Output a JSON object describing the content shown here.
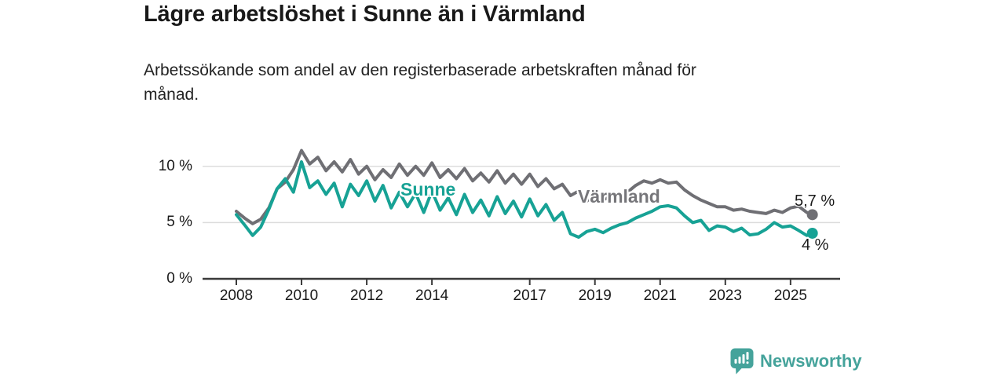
{
  "header": {
    "title": "Lägre arbetslöshet i Sunne än i Värmland",
    "subtitle_line1": "Arbetssökande som andel av den registerbaserade arbetskraften månad för",
    "subtitle_line2": "månad."
  },
  "footer": {
    "brand": "Newsworthy",
    "brand_color": "#45a39b",
    "logo_icon": "speech-bubble-bar-chart-icon"
  },
  "chart_data": {
    "type": "line",
    "title": "Lägre arbetslöshet i Sunne än i Värmland",
    "subtitle": "Arbetssökande som andel av den registerbaserade arbetskraften månad för månad.",
    "unit": "percent",
    "xlabel": "",
    "ylabel": "",
    "ylim": [
      0,
      12
    ],
    "xlim": [
      2008,
      2025.8
    ],
    "grid": "horizontal",
    "legend": "inline-labels",
    "colors": {
      "sunne": "#17a295",
      "varmland": "#6f6f74",
      "grid": "#dcdcdc",
      "axis": "#3a3a3a",
      "text": "#191919"
    },
    "y_ticks": [
      {
        "value": 0,
        "label": "0 %"
      },
      {
        "value": 5,
        "label": "5 %"
      },
      {
        "value": 10,
        "label": "10 %"
      }
    ],
    "x_ticks": [
      {
        "value": 2008,
        "label": "2008"
      },
      {
        "value": 2010,
        "label": "2010"
      },
      {
        "value": 2012,
        "label": "2012"
      },
      {
        "value": 2014,
        "label": "2014"
      },
      {
        "value": 2017,
        "label": "2017"
      },
      {
        "value": 2019,
        "label": "2019"
      },
      {
        "value": 2021,
        "label": "2021"
      },
      {
        "value": 2023,
        "label": "2023"
      },
      {
        "value": 2025,
        "label": "2025"
      }
    ],
    "x": [
      2008,
      2008.25,
      2008.5,
      2008.75,
      2009,
      2009.25,
      2009.5,
      2009.75,
      2010,
      2010.25,
      2010.5,
      2010.75,
      2011,
      2011.25,
      2011.5,
      2011.75,
      2012,
      2012.25,
      2012.5,
      2012.75,
      2013,
      2013.25,
      2013.5,
      2013.75,
      2014,
      2014.25,
      2014.5,
      2014.75,
      2015,
      2015.25,
      2015.5,
      2015.75,
      2016,
      2016.25,
      2016.5,
      2016.75,
      2017,
      2017.25,
      2017.5,
      2017.75,
      2018,
      2018.25,
      2018.5,
      2018.75,
      2019,
      2019.25,
      2019.5,
      2019.75,
      2020,
      2020.25,
      2020.5,
      2020.75,
      2021,
      2021.25,
      2021.5,
      2021.75,
      2022,
      2022.25,
      2022.5,
      2022.75,
      2023,
      2023.25,
      2023.5,
      2023.75,
      2024,
      2024.25,
      2024.5,
      2024.75,
      2025,
      2025.25,
      2025.5,
      2025.67
    ],
    "series": [
      {
        "name": "Värmland",
        "color": "#6f6f74",
        "end_label": "5,7 %",
        "end_value": 5.7,
        "values": [
          6.0,
          5.4,
          4.9,
          5.3,
          6.3,
          8.0,
          8.6,
          9.7,
          11.4,
          10.2,
          10.8,
          9.6,
          10.4,
          9.5,
          10.6,
          9.3,
          10.0,
          8.8,
          9.7,
          9.0,
          10.2,
          9.2,
          10.0,
          9.2,
          10.3,
          9.0,
          9.7,
          8.9,
          9.8,
          8.7,
          9.4,
          8.6,
          9.6,
          8.5,
          9.3,
          8.4,
          9.3,
          8.2,
          8.9,
          8.0,
          8.4,
          7.4,
          7.8,
          6.9,
          7.5,
          7.0,
          7.4,
          7.2,
          7.7,
          8.3,
          8.7,
          8.5,
          8.8,
          8.5,
          8.6,
          7.9,
          7.4,
          7.0,
          6.7,
          6.4,
          6.4,
          6.1,
          6.2,
          6.0,
          5.9,
          5.8,
          6.1,
          5.9,
          6.3,
          6.45,
          5.9,
          5.7
        ]
      },
      {
        "name": "Sunne",
        "color": "#17a295",
        "end_label": "4 %",
        "end_value": 4.0,
        "values": [
          5.7,
          4.8,
          3.85,
          4.6,
          6.2,
          8.0,
          8.9,
          7.7,
          10.4,
          8.1,
          8.7,
          7.5,
          8.5,
          6.4,
          8.4,
          7.4,
          8.7,
          6.9,
          8.3,
          6.3,
          7.7,
          6.4,
          7.6,
          5.9,
          7.8,
          6.1,
          7.2,
          5.7,
          7.5,
          5.9,
          7.0,
          5.6,
          7.3,
          5.8,
          6.9,
          5.5,
          7.1,
          5.6,
          6.6,
          5.2,
          5.9,
          4.0,
          3.7,
          4.2,
          4.4,
          4.1,
          4.5,
          4.8,
          5.0,
          5.4,
          5.7,
          6.0,
          6.4,
          6.5,
          6.3,
          5.6,
          5.0,
          5.2,
          4.3,
          4.7,
          4.6,
          4.2,
          4.5,
          3.9,
          4.0,
          4.4,
          5.0,
          4.6,
          4.7,
          4.3,
          3.85,
          4.05
        ]
      }
    ]
  }
}
